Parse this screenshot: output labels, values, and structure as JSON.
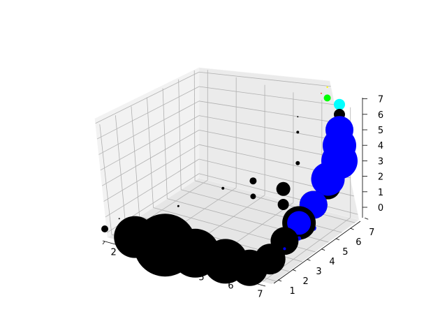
{
  "chart_data": {
    "type": "scatter",
    "projection": "3d",
    "title": "",
    "xlabel": "",
    "ylabel": "",
    "zlabel": "",
    "xlim": [
      1.7,
      7.3
    ],
    "ylim": [
      0.7,
      7.3
    ],
    "zlim": [
      -0.3,
      7.3
    ],
    "x_ticks": [
      2,
      3,
      4,
      5,
      6,
      7
    ],
    "y_ticks": [
      1,
      2,
      3,
      4,
      5,
      6,
      7
    ],
    "z_ticks": [
      0,
      1,
      2,
      3,
      4,
      5,
      6,
      7
    ],
    "grid": true,
    "pane_color": "#f2f2f2",
    "series": [
      {
        "color": "#000000",
        "points": [
          {
            "x": 2,
            "y": 1,
            "z": 0,
            "size": 5
          },
          {
            "x": 3,
            "y": 1,
            "z": 0,
            "size": 30
          },
          {
            "x": 4,
            "y": 1,
            "z": 0,
            "size": 45
          },
          {
            "x": 5,
            "y": 1,
            "z": 0,
            "size": 35
          },
          {
            "x": 6,
            "y": 1,
            "z": 0,
            "size": 32
          },
          {
            "x": 6.8,
            "y": 1,
            "z": 0,
            "size": 26
          },
          {
            "x": 7,
            "y": 2,
            "z": 0,
            "size": 22
          },
          {
            "x": 7,
            "y": 3,
            "z": 0.5,
            "size": 20
          },
          {
            "x": 7,
            "y": 4,
            "z": 1,
            "size": 24
          },
          {
            "x": 7,
            "y": 5,
            "z": 1.5,
            "size": 20
          },
          {
            "x": 7,
            "y": 6,
            "z": 2,
            "size": 18
          },
          {
            "x": 7,
            "y": 7,
            "z": 3,
            "size": 22
          },
          {
            "x": 7,
            "y": 7,
            "z": 4,
            "size": 20
          },
          {
            "x": 7,
            "y": 7,
            "z": 5,
            "size": 14
          },
          {
            "x": 7,
            "y": 7,
            "z": 6,
            "size": 8
          },
          {
            "x": 6,
            "y": 5,
            "z": 1,
            "size": 8
          },
          {
            "x": 6,
            "y": 5,
            "z": 2,
            "size": 10
          },
          {
            "x": 5,
            "y": 5,
            "z": 1,
            "size": 4
          },
          {
            "x": 5,
            "y": 5,
            "z": 2,
            "size": 5
          },
          {
            "x": 6,
            "y": 6,
            "z": 3,
            "size": 3
          },
          {
            "x": 6,
            "y": 6,
            "z": 5,
            "size": 2
          },
          {
            "x": 6,
            "y": 6,
            "z": 6,
            "size": 1
          },
          {
            "x": 4,
            "y": 5,
            "z": 1,
            "size": 2
          },
          {
            "x": 3,
            "y": 4,
            "z": 0,
            "size": 1.5
          },
          {
            "x": 2,
            "y": 2,
            "z": 0,
            "size": 1
          },
          {
            "x": 3,
            "y": 3,
            "z": 0,
            "size": 1
          }
        ]
      },
      {
        "color": "#0000ff",
        "points": [
          {
            "x": 7,
            "y": 3,
            "z": 0,
            "size": 2
          },
          {
            "x": 7,
            "y": 4,
            "z": 0,
            "size": 3
          },
          {
            "x": 7,
            "y": 5,
            "z": 0,
            "size": 4
          },
          {
            "x": 7,
            "y": 4,
            "z": 1,
            "size": 17
          },
          {
            "x": 7,
            "y": 5,
            "z": 1.5,
            "size": 20
          },
          {
            "x": 7,
            "y": 6,
            "z": 2.5,
            "size": 24
          },
          {
            "x": 7,
            "y": 7,
            "z": 3,
            "size": 26
          },
          {
            "x": 7,
            "y": 7,
            "z": 4,
            "size": 24
          },
          {
            "x": 7,
            "y": 7,
            "z": 5,
            "size": 20
          }
        ]
      },
      {
        "color": "#00ff00",
        "points": [
          {
            "x": 6.5,
            "y": 7,
            "z": 6.8,
            "size": 5
          }
        ]
      },
      {
        "color": "#ffff00",
        "points": [
          {
            "x": 6.5,
            "y": 7,
            "z": 7.5,
            "size": 1.2
          }
        ]
      },
      {
        "color": "#ff0000",
        "points": [
          {
            "x": 6.3,
            "y": 7,
            "z": 7,
            "size": 0.8
          }
        ]
      },
      {
        "color": "#00ffff",
        "points": [
          {
            "x": 7.3,
            "y": 7.6,
            "z": 6.4,
            "size": 8
          }
        ]
      }
    ]
  }
}
